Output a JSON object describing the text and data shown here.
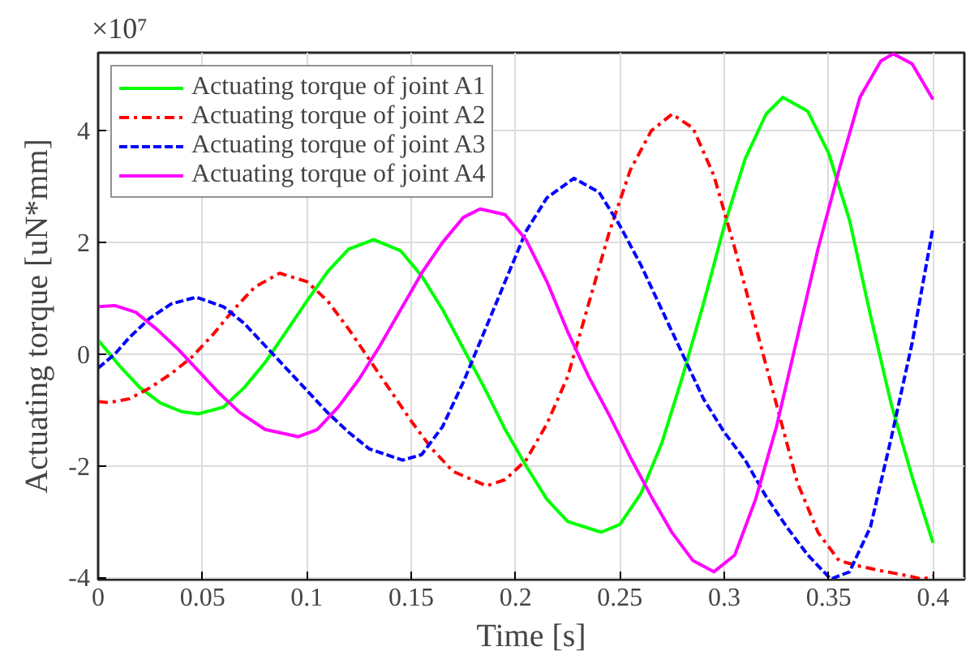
{
  "chart_data": {
    "type": "line",
    "xlabel": "Time [s]",
    "ylabel": "Actuating torque [uN*mm]",
    "annotations": [
      "×10⁷"
    ],
    "xlim": [
      0,
      0.415
    ],
    "ylim": [
      -4.04,
      5.4
    ],
    "xticks": [
      0,
      0.05,
      0.1,
      0.15,
      0.2,
      0.25,
      0.3,
      0.35,
      0.4
    ],
    "yticks": [
      -4,
      -2,
      0,
      2,
      4
    ],
    "grid": true,
    "legend": "top left",
    "marker": "none",
    "series": [
      {
        "name": "Actuating torque of joint A1",
        "color": "#00ff00",
        "line_style": "solid",
        "x": [
          0,
          0.01,
          0.02,
          0.03,
          0.04,
          0.048,
          0.06,
          0.07,
          0.08,
          0.09,
          0.1,
          0.11,
          0.12,
          0.132,
          0.145,
          0.155,
          0.165,
          0.175,
          0.185,
          0.195,
          0.205,
          0.215,
          0.225,
          0.241,
          0.25,
          0.26,
          0.27,
          0.28,
          0.29,
          0.3,
          0.31,
          0.32,
          0.328,
          0.34,
          0.35,
          0.36,
          0.37,
          0.38,
          0.39,
          0.4
        ],
        "values": [
          0.25,
          -0.2,
          -0.6,
          -0.88,
          -1.03,
          -1.07,
          -0.95,
          -0.6,
          -0.15,
          0.4,
          0.95,
          1.48,
          1.88,
          2.05,
          1.85,
          1.4,
          0.8,
          0.1,
          -0.6,
          -1.35,
          -2.0,
          -2.6,
          -3.0,
          -3.19,
          -3.05,
          -2.5,
          -1.6,
          -0.4,
          0.9,
          2.3,
          3.5,
          4.3,
          4.6,
          4.35,
          3.6,
          2.4,
          0.7,
          -0.9,
          -2.2,
          -3.38
        ]
      },
      {
        "name": "Actuating torque of joint A2",
        "color": "#ff0000",
        "line_style": "dashdot",
        "x": [
          0,
          0.005,
          0.015,
          0.025,
          0.035,
          0.045,
          0.055,
          0.065,
          0.075,
          0.087,
          0.1,
          0.11,
          0.12,
          0.13,
          0.14,
          0.15,
          0.16,
          0.17,
          0.186,
          0.195,
          0.205,
          0.215,
          0.225,
          0.235,
          0.245,
          0.255,
          0.265,
          0.275,
          0.285,
          0.295,
          0.305,
          0.315,
          0.325,
          0.335,
          0.345,
          0.355,
          0.365,
          0.375,
          0.385,
          0.395,
          0.4
        ],
        "values": [
          -0.85,
          -0.87,
          -0.8,
          -0.6,
          -0.35,
          -0.05,
          0.35,
          0.8,
          1.2,
          1.45,
          1.3,
          0.95,
          0.45,
          -0.1,
          -0.65,
          -1.2,
          -1.7,
          -2.1,
          -2.36,
          -2.25,
          -1.9,
          -1.25,
          -0.4,
          0.9,
          2.2,
          3.3,
          4.0,
          4.3,
          4.05,
          3.2,
          1.9,
          0.5,
          -0.9,
          -2.3,
          -3.2,
          -3.7,
          -3.8,
          -3.88,
          -3.95,
          -4.03,
          -3.98
        ]
      },
      {
        "name": "Actuating torque of joint A3",
        "color": "#0000ff",
        "line_style": "dashed",
        "x": [
          0,
          0.008,
          0.015,
          0.025,
          0.035,
          0.047,
          0.06,
          0.07,
          0.08,
          0.09,
          0.1,
          0.11,
          0.12,
          0.13,
          0.146,
          0.155,
          0.165,
          0.175,
          0.185,
          0.195,
          0.205,
          0.215,
          0.228,
          0.24,
          0.25,
          0.26,
          0.27,
          0.28,
          0.29,
          0.3,
          0.31,
          0.32,
          0.33,
          0.34,
          0.351,
          0.36,
          0.37,
          0.38,
          0.39,
          0.4
        ],
        "values": [
          -0.25,
          0,
          0.3,
          0.65,
          0.9,
          1.02,
          0.85,
          0.55,
          0.15,
          -0.25,
          -0.65,
          -1.05,
          -1.4,
          -1.7,
          -1.9,
          -1.8,
          -1.3,
          -0.5,
          0.4,
          1.3,
          2.2,
          2.8,
          3.15,
          2.9,
          2.3,
          1.6,
          0.8,
          0.0,
          -0.8,
          -1.4,
          -1.9,
          -2.55,
          -3.1,
          -3.6,
          -4.03,
          -3.9,
          -3.1,
          -1.5,
          0.2,
          2.27
        ]
      },
      {
        "name": "Actuating torque of joint A4",
        "color": "#ff00ff",
        "line_style": "solid",
        "x": [
          0,
          0.008,
          0.018,
          0.028,
          0.038,
          0.048,
          0.058,
          0.068,
          0.08,
          0.096,
          0.105,
          0.115,
          0.125,
          0.135,
          0.145,
          0.155,
          0.165,
          0.175,
          0.183,
          0.195,
          0.205,
          0.215,
          0.225,
          0.235,
          0.245,
          0.255,
          0.265,
          0.275,
          0.285,
          0.295,
          0.305,
          0.315,
          0.325,
          0.335,
          0.345,
          0.355,
          0.365,
          0.375,
          0.381,
          0.39,
          0.4
        ],
        "values": [
          0.85,
          0.87,
          0.75,
          0.45,
          0.1,
          -0.3,
          -0.7,
          -1.05,
          -1.35,
          -1.48,
          -1.35,
          -0.95,
          -0.45,
          0.15,
          0.8,
          1.45,
          2.0,
          2.45,
          2.6,
          2.5,
          2.05,
          1.3,
          0.4,
          -0.4,
          -1.1,
          -1.85,
          -2.55,
          -3.2,
          -3.7,
          -3.9,
          -3.6,
          -2.6,
          -1.3,
          0.3,
          1.9,
          3.3,
          4.6,
          5.25,
          5.38,
          5.2,
          4.56
        ]
      }
    ]
  }
}
